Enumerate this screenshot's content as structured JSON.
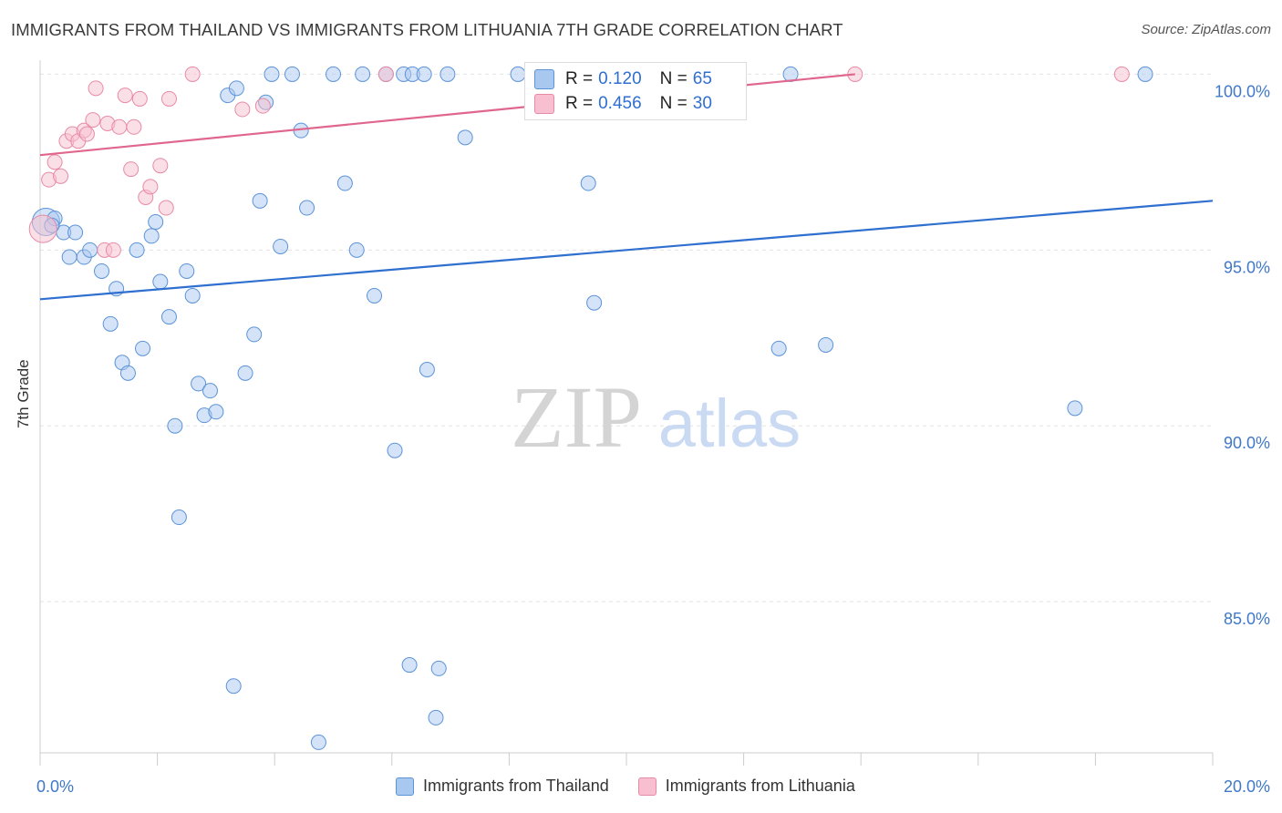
{
  "title": "IMMIGRANTS FROM THAILAND VS IMMIGRANTS FROM LITHUANIA 7TH GRADE CORRELATION CHART",
  "source": "Source: ZipAtlas.com",
  "watermark": {
    "zip": "ZIP",
    "atlas": "atlas"
  },
  "colors": {
    "thailand_fill": "#a9c8f0",
    "thailand_stroke": "#5b93d8",
    "thailand_line": "#2f6fcf",
    "lithuania_fill": "#f7bfcf",
    "lithuania_stroke": "#e88aa5",
    "lithuania_line": "#e0668d",
    "tick_label": "#3f78c8",
    "grid": "#e3e3e3"
  },
  "stats": [
    {
      "r_label": "R =",
      "r": "0.120",
      "n_label": "N =",
      "n": "65",
      "series": "thailand"
    },
    {
      "r_label": "R =",
      "r": "0.456",
      "n_label": "N =",
      "n": "30",
      "series": "lithuania"
    }
  ],
  "legend": [
    {
      "label": "Immigrants from Thailand",
      "series": "thailand"
    },
    {
      "label": "Immigrants from Lithuania",
      "series": "lithuania"
    }
  ],
  "chart_data": {
    "type": "scatter",
    "title": "IMMIGRANTS FROM THAILAND VS IMMIGRANTS FROM LITHUANIA 7TH GRADE CORRELATION CHART",
    "xlabel": "",
    "ylabel": "7th Grade",
    "xlim": [
      0,
      20
    ],
    "ylim": [
      80.7,
      100.4
    ],
    "x_ticks": [
      0,
      2,
      4,
      6,
      8,
      10,
      12,
      14,
      16,
      18,
      20
    ],
    "x_tick_labels": {
      "0": "0.0%",
      "20": "20.0%"
    },
    "y_ticks": [
      85,
      90,
      95,
      100
    ],
    "y_tick_labels": [
      "85.0%",
      "90.0%",
      "95.0%",
      "100.0%"
    ],
    "grid": true,
    "series": [
      {
        "name": "Immigrants from Thailand",
        "key": "thailand",
        "trend": {
          "x": [
            0,
            20
          ],
          "y": [
            93.6,
            96.4
          ]
        },
        "points": [
          {
            "x": 0.1,
            "y": 95.8,
            "big": true
          },
          {
            "x": 0.25,
            "y": 95.9
          },
          {
            "x": 0.4,
            "y": 95.5
          },
          {
            "x": 0.6,
            "y": 95.5
          },
          {
            "x": 0.5,
            "y": 94.8
          },
          {
            "x": 0.75,
            "y": 94.8
          },
          {
            "x": 0.85,
            "y": 95.0
          },
          {
            "x": 1.05,
            "y": 94.4
          },
          {
            "x": 1.3,
            "y": 93.9
          },
          {
            "x": 1.2,
            "y": 92.9
          },
          {
            "x": 1.4,
            "y": 91.8
          },
          {
            "x": 1.5,
            "y": 91.5
          },
          {
            "x": 1.65,
            "y": 95.0
          },
          {
            "x": 1.75,
            "y": 92.2
          },
          {
            "x": 1.9,
            "y": 95.4
          },
          {
            "x": 1.97,
            "y": 95.8
          },
          {
            "x": 2.05,
            "y": 94.1
          },
          {
            "x": 2.2,
            "y": 93.1
          },
          {
            "x": 2.3,
            "y": 90.0
          },
          {
            "x": 2.37,
            "y": 87.4
          },
          {
            "x": 2.5,
            "y": 94.4
          },
          {
            "x": 2.6,
            "y": 93.7
          },
          {
            "x": 2.7,
            "y": 91.2
          },
          {
            "x": 2.8,
            "y": 90.3
          },
          {
            "x": 2.9,
            "y": 91.0
          },
          {
            "x": 3.0,
            "y": 90.4
          },
          {
            "x": 3.2,
            "y": 99.4
          },
          {
            "x": 3.35,
            "y": 99.6
          },
          {
            "x": 3.3,
            "y": 82.6
          },
          {
            "x": 3.5,
            "y": 91.5
          },
          {
            "x": 3.65,
            "y": 92.6
          },
          {
            "x": 3.75,
            "y": 96.4
          },
          {
            "x": 3.85,
            "y": 99.2
          },
          {
            "x": 3.95,
            "y": 100.0
          },
          {
            "x": 4.1,
            "y": 95.1
          },
          {
            "x": 4.3,
            "y": 100.0
          },
          {
            "x": 4.45,
            "y": 98.4
          },
          {
            "x": 4.55,
            "y": 96.2
          },
          {
            "x": 4.75,
            "y": 81.0
          },
          {
            "x": 5.0,
            "y": 100.0
          },
          {
            "x": 5.2,
            "y": 96.9
          },
          {
            "x": 5.4,
            "y": 95.0
          },
          {
            "x": 5.5,
            "y": 100.0
          },
          {
            "x": 5.7,
            "y": 93.7
          },
          {
            "x": 5.9,
            "y": 100.0
          },
          {
            "x": 6.05,
            "y": 89.3
          },
          {
            "x": 6.2,
            "y": 100.0
          },
          {
            "x": 6.3,
            "y": 83.2
          },
          {
            "x": 6.35,
            "y": 100.0
          },
          {
            "x": 6.55,
            "y": 100.0
          },
          {
            "x": 6.6,
            "y": 91.6
          },
          {
            "x": 6.75,
            "y": 81.7
          },
          {
            "x": 6.8,
            "y": 83.1
          },
          {
            "x": 6.95,
            "y": 100.0
          },
          {
            "x": 7.25,
            "y": 98.2
          },
          {
            "x": 8.15,
            "y": 100.0
          },
          {
            "x": 9.35,
            "y": 96.9
          },
          {
            "x": 9.45,
            "y": 93.5
          },
          {
            "x": 11.3,
            "y": 100.0
          },
          {
            "x": 12.6,
            "y": 92.2
          },
          {
            "x": 12.8,
            "y": 100.0
          },
          {
            "x": 13.4,
            "y": 92.3
          },
          {
            "x": 17.65,
            "y": 90.5
          },
          {
            "x": 18.85,
            "y": 100.0
          },
          {
            "x": 0.2,
            "y": 95.7
          }
        ]
      },
      {
        "name": "Immigrants from Lithuania",
        "key": "lithuania",
        "trend": {
          "x": [
            0,
            13.9
          ],
          "y": [
            97.7,
            100.0
          ]
        },
        "points": [
          {
            "x": 0.05,
            "y": 95.6,
            "big": true
          },
          {
            "x": 0.15,
            "y": 97.0
          },
          {
            "x": 0.25,
            "y": 97.5
          },
          {
            "x": 0.35,
            "y": 97.1
          },
          {
            "x": 0.45,
            "y": 98.1
          },
          {
            "x": 0.55,
            "y": 98.3
          },
          {
            "x": 0.65,
            "y": 98.1
          },
          {
            "x": 0.75,
            "y": 98.4
          },
          {
            "x": 0.8,
            "y": 98.3
          },
          {
            "x": 0.9,
            "y": 98.7
          },
          {
            "x": 0.95,
            "y": 99.6
          },
          {
            "x": 1.1,
            "y": 95.0
          },
          {
            "x": 1.15,
            "y": 98.6
          },
          {
            "x": 1.25,
            "y": 95.0
          },
          {
            "x": 1.35,
            "y": 98.5
          },
          {
            "x": 1.45,
            "y": 99.4
          },
          {
            "x": 1.55,
            "y": 97.3
          },
          {
            "x": 1.6,
            "y": 98.5
          },
          {
            "x": 1.7,
            "y": 99.3
          },
          {
            "x": 1.8,
            "y": 96.5
          },
          {
            "x": 1.88,
            "y": 96.8
          },
          {
            "x": 2.05,
            "y": 97.4
          },
          {
            "x": 2.15,
            "y": 96.2
          },
          {
            "x": 2.2,
            "y": 99.3
          },
          {
            "x": 2.6,
            "y": 100.0
          },
          {
            "x": 3.45,
            "y": 99.0
          },
          {
            "x": 3.8,
            "y": 99.1
          },
          {
            "x": 5.9,
            "y": 100.0
          },
          {
            "x": 13.9,
            "y": 100.0
          },
          {
            "x": 18.45,
            "y": 100.0
          }
        ]
      }
    ]
  }
}
